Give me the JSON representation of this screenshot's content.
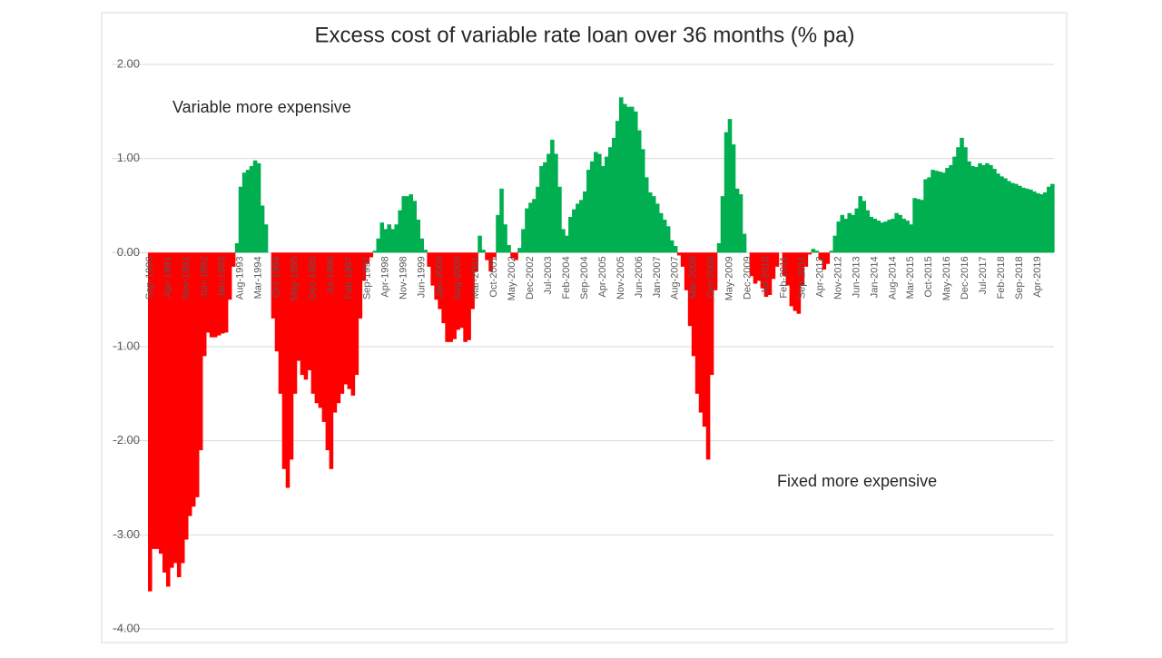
{
  "chart_data": {
    "type": "area",
    "title": "Excess cost of variable rate loan over 36 months (% pa)",
    "annotations": [
      "Variable more expensive",
      "Fixed more expensive"
    ],
    "positive_color": "#00b050",
    "negative_color": "#ff0000",
    "grid": true,
    "ylim": [
      -4,
      2
    ],
    "yticks": [
      {
        "value": -4,
        "label": "-4.00"
      },
      {
        "value": -3,
        "label": "-3.00"
      },
      {
        "value": -2,
        "label": "-2.00"
      },
      {
        "value": -1,
        "label": "-1.00"
      },
      {
        "value": 0,
        "label": "0.00"
      },
      {
        "value": 1,
        "label": "1.00"
      },
      {
        "value": 2,
        "label": "2.00"
      }
    ],
    "categories": [
      "Sep-1990",
      null,
      null,
      null,
      null,
      "Apr-1991",
      null,
      null,
      null,
      null,
      "Nov-1991",
      null,
      null,
      null,
      null,
      "Jun-1992",
      null,
      null,
      null,
      null,
      "Jan-1993",
      null,
      null,
      null,
      null,
      "Aug-1993",
      null,
      null,
      null,
      null,
      "Mar-1994",
      null,
      null,
      null,
      null,
      "Oct-1994",
      null,
      null,
      null,
      null,
      "May-1995",
      null,
      null,
      null,
      null,
      "Dec-1995",
      null,
      null,
      null,
      null,
      "Jul-1996",
      null,
      null,
      null,
      null,
      "Feb-1997",
      null,
      null,
      null,
      null,
      "Sep-1997",
      null,
      null,
      null,
      null,
      "Apr-1998",
      null,
      null,
      null,
      null,
      "Nov-1998",
      null,
      null,
      null,
      null,
      "Jun-1999",
      null,
      null,
      null,
      null,
      "Jan-2000",
      null,
      null,
      null,
      null,
      "Aug-2000",
      null,
      null,
      null,
      null,
      "Mar-2001",
      null,
      null,
      null,
      null,
      "Oct-2001",
      null,
      null,
      null,
      null,
      "May-2002",
      null,
      null,
      null,
      null,
      "Dec-2002",
      null,
      null,
      null,
      null,
      "Jul-2003",
      null,
      null,
      null,
      null,
      "Feb-2004",
      null,
      null,
      null,
      null,
      "Sep-2004",
      null,
      null,
      null,
      null,
      "Apr-2005",
      null,
      null,
      null,
      null,
      "Nov-2005",
      null,
      null,
      null,
      null,
      "Jun-2006",
      null,
      null,
      null,
      null,
      "Jan-2007",
      null,
      null,
      null,
      null,
      "Aug-2007",
      null,
      null,
      null,
      null,
      "Mar-2008",
      null,
      null,
      null,
      null,
      "Oct-2008",
      null,
      null,
      null,
      null,
      "May-2009",
      null,
      null,
      null,
      null,
      "Dec-2009",
      null,
      null,
      null,
      null,
      "Jul-2010",
      null,
      null,
      null,
      null,
      "Feb-2011",
      null,
      null,
      null,
      null,
      "Sep-2011",
      null,
      null,
      null,
      null,
      "Apr-2012",
      null,
      null,
      null,
      null,
      "Nov-2012",
      null,
      null,
      null,
      null,
      "Jun-2013",
      null,
      null,
      null,
      null,
      "Jan-2014",
      null,
      null,
      null,
      null,
      "Aug-2014",
      null,
      null,
      null,
      null,
      "Mar-2015",
      null,
      null,
      null,
      null,
      "Oct-2015",
      null,
      null,
      null,
      null,
      "May-2016",
      null,
      null,
      null,
      null,
      "Dec-2016",
      null,
      null,
      null,
      null,
      "Jul-2017",
      null,
      null,
      null,
      null,
      "Feb-2018",
      null,
      null,
      null,
      null,
      "Sep-2018",
      null,
      null,
      null,
      null,
      "Apr-2019",
      null,
      null,
      null,
      null
    ],
    "values": [
      -3.6,
      -3.15,
      -3.15,
      -3.2,
      -3.4,
      -3.55,
      -3.35,
      -3.3,
      -3.45,
      -3.3,
      -3.05,
      -2.8,
      -2.7,
      -2.6,
      -2.1,
      -1.1,
      -0.85,
      -0.9,
      -0.9,
      -0.88,
      -0.86,
      -0.85,
      -0.5,
      -0.15,
      0.1,
      0.7,
      0.85,
      0.88,
      0.92,
      0.98,
      0.95,
      0.5,
      0.3,
      0.0,
      -0.7,
      -1.05,
      -1.5,
      -2.3,
      -2.5,
      -2.2,
      -1.5,
      -1.15,
      -1.3,
      -1.35,
      -1.25,
      -1.5,
      -1.6,
      -1.65,
      -1.8,
      -2.1,
      -2.3,
      -1.7,
      -1.6,
      -1.5,
      -1.4,
      -1.45,
      -1.52,
      -1.3,
      -0.7,
      -0.3,
      -0.12,
      -0.05,
      0.02,
      0.15,
      0.32,
      0.25,
      0.3,
      0.25,
      0.3,
      0.45,
      0.6,
      0.6,
      0.62,
      0.55,
      0.35,
      0.15,
      0.03,
      -0.15,
      -0.35,
      -0.5,
      -0.6,
      -0.75,
      -0.95,
      -0.95,
      -0.92,
      -0.82,
      -0.8,
      -0.95,
      -0.93,
      -0.6,
      -0.2,
      0.18,
      0.03,
      -0.08,
      -0.2,
      -0.05,
      0.4,
      0.68,
      0.3,
      0.08,
      -0.06,
      -0.08,
      0.05,
      0.25,
      0.47,
      0.53,
      0.57,
      0.7,
      0.92,
      0.96,
      1.05,
      1.2,
      1.05,
      0.7,
      0.25,
      0.18,
      0.38,
      0.46,
      0.52,
      0.56,
      0.65,
      0.88,
      0.97,
      1.07,
      1.05,
      0.92,
      1.02,
      1.12,
      1.22,
      1.4,
      1.65,
      1.58,
      1.55,
      1.55,
      1.5,
      1.3,
      1.1,
      0.8,
      0.64,
      0.6,
      0.52,
      0.42,
      0.35,
      0.28,
      0.13,
      0.07,
      -0.03,
      -0.15,
      -0.4,
      -0.78,
      -1.1,
      -1.5,
      -1.7,
      -1.85,
      -2.2,
      -1.3,
      -0.4,
      0.1,
      0.6,
      1.28,
      1.42,
      1.15,
      0.68,
      0.62,
      0.2,
      0.0,
      -0.25,
      -0.33,
      -0.3,
      -0.38,
      -0.47,
      -0.45,
      -0.28,
      -0.15,
      0.0,
      -0.25,
      -0.35,
      -0.57,
      -0.62,
      -0.65,
      -0.35,
      -0.15,
      -0.02,
      0.04,
      0.02,
      -0.08,
      -0.18,
      -0.12,
      0.02,
      0.18,
      0.33,
      0.4,
      0.36,
      0.42,
      0.4,
      0.47,
      0.6,
      0.55,
      0.45,
      0.38,
      0.36,
      0.34,
      0.32,
      0.33,
      0.35,
      0.36,
      0.42,
      0.4,
      0.36,
      0.34,
      0.3,
      0.58,
      0.57,
      0.56,
      0.78,
      0.8,
      0.88,
      0.87,
      0.86,
      0.85,
      0.9,
      0.93,
      1.02,
      1.12,
      1.22,
      1.12,
      0.97,
      0.92,
      0.91,
      0.95,
      0.93,
      0.95,
      0.93,
      0.89,
      0.84,
      0.81,
      0.79,
      0.76,
      0.74,
      0.73,
      0.71,
      0.69,
      0.68,
      0.67,
      0.65,
      0.63,
      0.62,
      0.64,
      0.7,
      0.73
    ]
  }
}
